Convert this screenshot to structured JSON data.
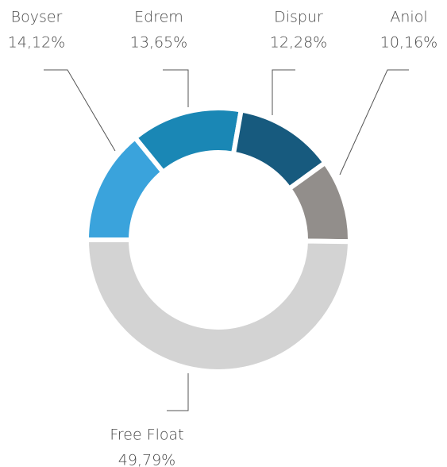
{
  "chart_data": {
    "type": "donut",
    "categories": [
      "Boyser",
      "Edrem",
      "Dispur",
      "Aniol",
      "Free Float"
    ],
    "values": [
      14.12,
      13.65,
      12.28,
      10.16,
      49.79
    ],
    "value_labels": [
      "14,12%",
      "13,65%",
      "12,28%",
      "10,16%",
      "49,79%"
    ],
    "colors": [
      "#3aa3dc",
      "#1a87b5",
      "#175a7e",
      "#928e8b",
      "#d3d3d3"
    ]
  }
}
